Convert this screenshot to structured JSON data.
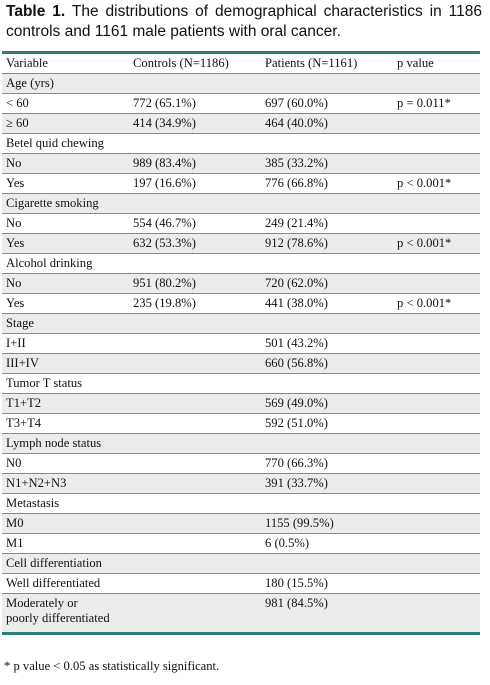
{
  "caption": {
    "label": "Table 1.",
    "text": "The distributions of demographical characteristics in 1186 controls and 1161 male patients with oral cancer."
  },
  "headers": [
    "Variable",
    "Controls (N=1186)",
    "Patients (N=1161)",
    "p value"
  ],
  "rows": [
    {
      "cells": [
        "Age (yrs)",
        "",
        "",
        ""
      ],
      "type": "group"
    },
    {
      "cells": [
        "< 60",
        "772 (65.1%)",
        "697 (60.0%)",
        "p = 0.011*"
      ],
      "type": "data"
    },
    {
      "cells": [
        "≥ 60",
        "414 (34.9%)",
        "464 (40.0%)",
        ""
      ],
      "type": "data"
    },
    {
      "cells": [
        "Betel quid chewing",
        "",
        "",
        ""
      ],
      "type": "group"
    },
    {
      "cells": [
        "No",
        "989 (83.4%)",
        "385 (33.2%)",
        ""
      ],
      "type": "data"
    },
    {
      "cells": [
        "Yes",
        "197 (16.6%)",
        "776 (66.8%)",
        "p < 0.001*"
      ],
      "type": "data"
    },
    {
      "cells": [
        "Cigarette smoking",
        "",
        "",
        ""
      ],
      "type": "group"
    },
    {
      "cells": [
        "No",
        "554 (46.7%)",
        "249 (21.4%)",
        ""
      ],
      "type": "data"
    },
    {
      "cells": [
        "Yes",
        "632 (53.3%)",
        "912 (78.6%)",
        "p < 0.001*"
      ],
      "type": "data"
    },
    {
      "cells": [
        "Alcohol drinking",
        "",
        "",
        ""
      ],
      "type": "group"
    },
    {
      "cells": [
        "No",
        "951 (80.2%)",
        "720 (62.0%)",
        ""
      ],
      "type": "data"
    },
    {
      "cells": [
        "Yes",
        "235 (19.8%)",
        "441 (38.0%)",
        "p < 0.001*"
      ],
      "type": "data"
    },
    {
      "cells": [
        "Stage",
        "",
        "",
        ""
      ],
      "type": "group"
    },
    {
      "cells": [
        "I+II",
        "",
        "501 (43.2%)",
        ""
      ],
      "type": "data"
    },
    {
      "cells": [
        "III+IV",
        "",
        "660 (56.8%)",
        ""
      ],
      "type": "data"
    },
    {
      "cells": [
        "Tumor T status",
        "",
        "",
        ""
      ],
      "type": "group"
    },
    {
      "cells": [
        "T1+T2",
        "",
        "569 (49.0%)",
        ""
      ],
      "type": "data"
    },
    {
      "cells": [
        "T3+T4",
        "",
        "592 (51.0%)",
        ""
      ],
      "type": "data"
    },
    {
      "cells": [
        "Lymph node status",
        "",
        "",
        ""
      ],
      "type": "group"
    },
    {
      "cells": [
        "N0",
        "",
        "770 (66.3%)",
        ""
      ],
      "type": "data"
    },
    {
      "cells": [
        "N1+N2+N3",
        "",
        "391 (33.7%)",
        ""
      ],
      "type": "data"
    },
    {
      "cells": [
        "Metastasis",
        "",
        "",
        ""
      ],
      "type": "group"
    },
    {
      "cells": [
        "M0",
        "",
        "1155 (99.5%)",
        ""
      ],
      "type": "data"
    },
    {
      "cells": [
        "M1",
        "",
        "6 (0.5%)",
        ""
      ],
      "type": "data"
    },
    {
      "cells": [
        "Cell differentiation",
        "",
        "",
        ""
      ],
      "type": "group"
    },
    {
      "cells": [
        "Well differentiated",
        "",
        "180 (15.5%)",
        ""
      ],
      "type": "data"
    },
    {
      "cells": [
        "Moderately or\npoorly differentiated",
        "",
        "981 (84.5%)",
        ""
      ],
      "type": "data",
      "multiline": true
    }
  ],
  "footnote": "* p value < 0.05 as statistically significant."
}
